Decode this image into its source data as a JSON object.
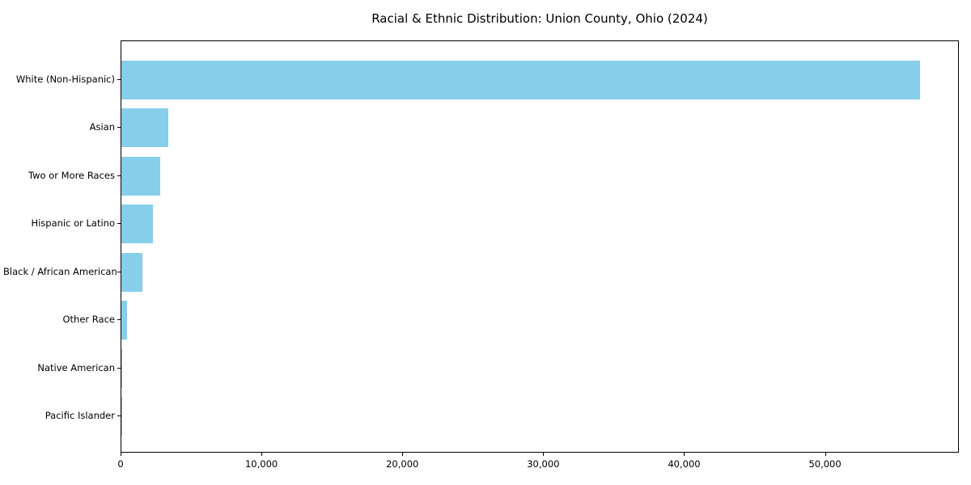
{
  "chart_data": {
    "type": "bar",
    "orientation": "horizontal",
    "title": "Racial & Ethnic Distribution: Union County, Ohio (2024)",
    "categories": [
      "White (Non-Hispanic)",
      "Asian",
      "Two or More Races",
      "Hispanic or Latino",
      "Black / African American",
      "Other Race",
      "Native American",
      "Pacific Islander"
    ],
    "values": [
      56700,
      3330,
      2760,
      2240,
      1490,
      400,
      80,
      25
    ],
    "xlabel": "",
    "ylabel": "",
    "xlim": [
      0,
      59500
    ],
    "xticks": [
      0,
      10000,
      20000,
      30000,
      40000,
      50000
    ],
    "xtick_labels": [
      "0",
      "10,000",
      "20,000",
      "30,000",
      "40,000",
      "50,000"
    ],
    "bar_color": "#87CEEB",
    "axis_color": "#000000",
    "background_color": "#ffffff",
    "grid": false,
    "legend": "none"
  }
}
